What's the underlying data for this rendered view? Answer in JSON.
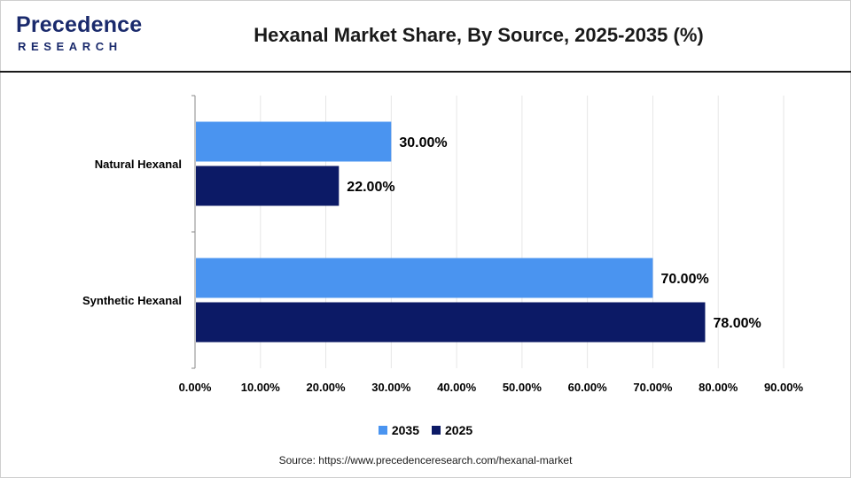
{
  "brand": {
    "logo_top": "Precedence",
    "logo_bottom": "RESEARCH"
  },
  "colors": {
    "series_2035": "#4a94f0",
    "series_2025": "#0c1a66",
    "brand": "#1a2a6c"
  },
  "source": "Source: https://www.precedenceresearch.com/hexanal-market",
  "chart_data": {
    "type": "bar",
    "orientation": "horizontal",
    "title": "Hexanal Market Share, By Source, 2025-2035 (%)",
    "categories": [
      "Natural Hexanal",
      "Synthetic Hexanal"
    ],
    "series": [
      {
        "name": "2035",
        "values": [
          30,
          70
        ],
        "labels": [
          "30.00%",
          "70.00%"
        ]
      },
      {
        "name": "2025",
        "values": [
          22,
          78
        ],
        "labels": [
          "22.00%",
          "78.00%"
        ]
      }
    ],
    "xlim": [
      0,
      90
    ],
    "xticks": [
      0,
      10,
      20,
      30,
      40,
      50,
      60,
      70,
      80,
      90
    ],
    "xtick_labels": [
      "0.00%",
      "10.00%",
      "20.00%",
      "30.00%",
      "40.00%",
      "50.00%",
      "60.00%",
      "70.00%",
      "80.00%",
      "90.00%"
    ],
    "grid": true,
    "legend_position": "bottom"
  }
}
